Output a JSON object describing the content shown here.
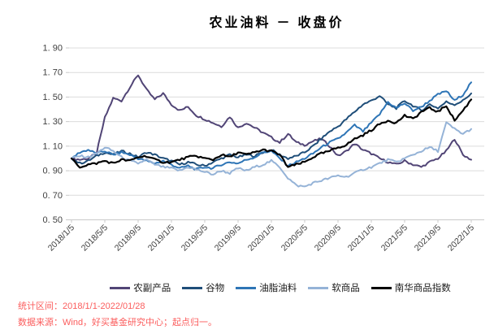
{
  "title": "农业油料 － 收盘价",
  "footer": {
    "line1": "统计区间：2018/1/1-2022/01/28",
    "line2": "数据来源：Wind，好买基金研究中心；起点归一。",
    "color": "#fb5d5d"
  },
  "colors": {
    "grid": "#dcdcdc",
    "axis": "#c9c9c9",
    "tick_label": "#3f3f3f"
  },
  "chart_data": {
    "type": "line",
    "title": "农业油料 － 收盘价",
    "xlabel": "",
    "ylabel": "",
    "ylim": [
      0.5,
      1.9
    ],
    "y_step": 0.2,
    "y_tick_labels": [
      "0. 50",
      "0. 70",
      "0. 90",
      "1. 10",
      "1. 30",
      "1. 50",
      "1. 70",
      "1. 90"
    ],
    "x_tick_labels": [
      "2018/1/5",
      "2018/5/5",
      "2018/9/5",
      "2019/1/5",
      "2019/5/5",
      "2019/9/5",
      "2020/1/5",
      "2020/5/5",
      "2020/9/5",
      "2021/1/5",
      "2021/5/5",
      "2021/9/5",
      "2022/1/5"
    ],
    "x_sampling": "monthly, 2018/1 through 2022/1, 49 equally spaced points",
    "grid": true,
    "legend_position": "bottom",
    "series": [
      {
        "name": "农副产品",
        "color": "#514576",
        "values": [
          1.0,
          0.99,
          1.0,
          1.04,
          1.33,
          1.49,
          1.47,
          1.58,
          1.68,
          1.56,
          1.48,
          1.53,
          1.44,
          1.39,
          1.42,
          1.35,
          1.32,
          1.29,
          1.26,
          1.34,
          1.25,
          1.29,
          1.25,
          1.21,
          1.17,
          1.13,
          1.2,
          1.13,
          1.11,
          1.14,
          1.16,
          1.1,
          1.02,
          1.06,
          1.12,
          1.07,
          1.04,
          1.0,
          0.97,
          0.95,
          0.98,
          0.95,
          0.93,
          0.97,
          1.0,
          1.06,
          1.16,
          1.03,
          0.99
        ]
      },
      {
        "name": "谷物",
        "color": "#1f4e79",
        "values": [
          1.0,
          0.96,
          0.98,
          1.02,
          1.05,
          1.03,
          1.06,
          1.04,
          1.01,
          1.05,
          1.03,
          1.0,
          0.98,
          0.95,
          0.97,
          0.95,
          0.94,
          0.97,
          1.0,
          1.03,
          1.01,
          1.03,
          1.02,
          1.05,
          1.07,
          1.03,
          1.0,
          1.02,
          1.05,
          1.1,
          1.16,
          1.22,
          1.26,
          1.32,
          1.38,
          1.44,
          1.47,
          1.51,
          1.44,
          1.41,
          1.47,
          1.43,
          1.39,
          1.44,
          1.41,
          1.46,
          1.44,
          1.47,
          1.53
        ]
      },
      {
        "name": "油脂油料",
        "color": "#2e75b6",
        "values": [
          1.0,
          1.05,
          1.07,
          1.04,
          1.06,
          1.03,
          1.05,
          1.03,
          1.0,
          0.98,
          0.96,
          0.98,
          0.95,
          0.92,
          0.94,
          0.91,
          0.93,
          0.92,
          0.95,
          0.97,
          0.96,
          0.99,
          1.01,
          1.05,
          1.06,
          1.0,
          0.94,
          0.97,
          1.0,
          1.04,
          1.09,
          1.13,
          1.16,
          1.21,
          1.27,
          1.22,
          1.29,
          1.36,
          1.46,
          1.41,
          1.45,
          1.39,
          1.42,
          1.47,
          1.52,
          1.55,
          1.47,
          1.52,
          1.62
        ]
      },
      {
        "name": "软商品",
        "color": "#95b3d7",
        "values": [
          1.0,
          1.02,
          1.01,
          1.04,
          1.09,
          1.06,
          1.01,
          0.98,
          0.96,
          0.99,
          0.95,
          0.93,
          0.92,
          0.9,
          0.93,
          0.91,
          0.89,
          0.87,
          0.9,
          0.88,
          0.92,
          0.9,
          0.93,
          0.95,
          0.98,
          0.93,
          0.84,
          0.78,
          0.77,
          0.8,
          0.82,
          0.84,
          0.86,
          0.85,
          0.88,
          0.91,
          0.93,
          0.96,
          0.99,
          0.97,
          1.0,
          1.03,
          1.06,
          1.09,
          1.06,
          1.29,
          1.24,
          1.2,
          1.24
        ]
      },
      {
        "name": "南华商品指数",
        "color": "#000000",
        "values": [
          1.0,
          0.93,
          0.95,
          0.96,
          0.98,
          0.96,
          0.99,
          0.98,
          1.01,
          1.02,
          0.99,
          0.97,
          0.97,
          0.99,
          1.01,
          1.02,
          1.0,
          0.99,
          1.03,
          1.01,
          1.05,
          1.03,
          1.05,
          1.07,
          1.06,
          1.03,
          0.93,
          0.95,
          0.97,
          1.01,
          1.04,
          1.06,
          1.09,
          1.11,
          1.16,
          1.19,
          1.23,
          1.28,
          1.31,
          1.29,
          1.35,
          1.32,
          1.38,
          1.41,
          1.38,
          1.43,
          1.31,
          1.39,
          1.48
        ]
      }
    ]
  }
}
